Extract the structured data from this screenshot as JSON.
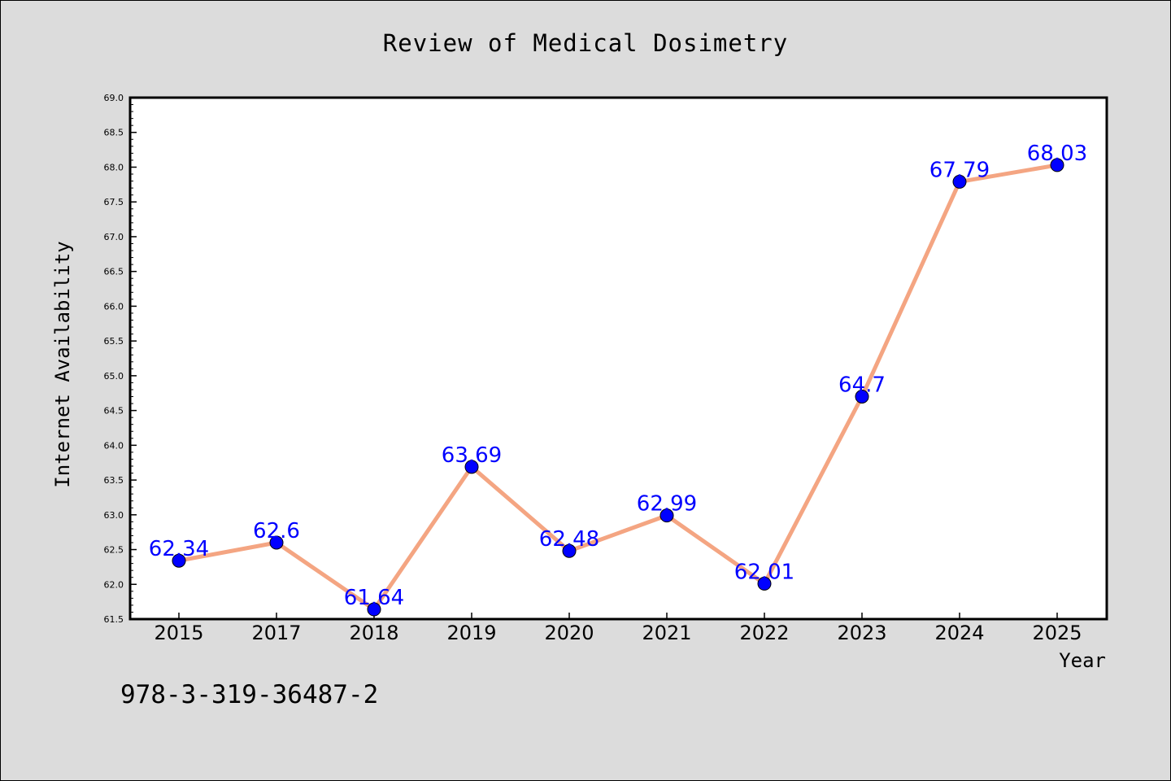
{
  "chart_data": {
    "type": "line",
    "title": "Review of Medical Dosimetry",
    "xlabel": "Year",
    "ylabel": "Internet Availability",
    "categories": [
      "2015",
      "2017",
      "2018",
      "2019",
      "2020",
      "2021",
      "2022",
      "2023",
      "2024",
      "2025"
    ],
    "values": [
      62.34,
      62.6,
      61.64,
      63.69,
      62.48,
      62.99,
      62.01,
      64.7,
      67.79,
      68.03
    ],
    "data_labels": [
      "62.34",
      "62.6",
      "61.64",
      "63.69",
      "62.48",
      "62.99",
      "62.01",
      "64.7",
      "67.79",
      "68.03"
    ],
    "ylim": [
      61.5,
      69.0
    ],
    "yticks": [
      "61.5",
      "62.0",
      "62.5",
      "63.0",
      "63.5",
      "64.0",
      "64.5",
      "65.0",
      "65.5",
      "66.0",
      "66.5",
      "67.0",
      "67.5",
      "68.0",
      "68.5",
      "69.0"
    ],
    "grid": false,
    "line_color": "#f4a582",
    "marker_color": "#0000ff",
    "label_color": "#0000ff",
    "background": "#dcdcdc",
    "plot_background": "#ffffff"
  },
  "footer": {
    "isbn": "978-3-319-36487-2"
  }
}
